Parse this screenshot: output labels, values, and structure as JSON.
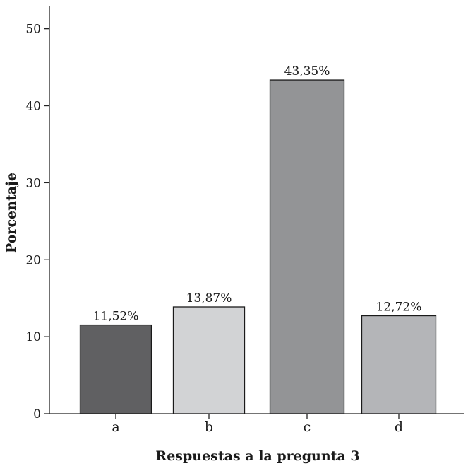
{
  "chart_data": {
    "type": "bar",
    "title": "",
    "xlabel": "Respuestas a la pregunta 3",
    "ylabel": "Porcentaje",
    "categories": [
      "a",
      "b",
      "c",
      "d"
    ],
    "values": [
      11.52,
      13.87,
      43.35,
      12.72
    ],
    "value_labels": [
      "11,52%",
      "13,87%",
      "43,35%",
      "12,72%"
    ],
    "bar_colors": [
      "#606062",
      "#d2d3d5",
      "#939496",
      "#b4b5b8"
    ],
    "ylim": [
      0,
      53
    ],
    "yticks": [
      0,
      10,
      20,
      30,
      40,
      50
    ],
    "grid": false,
    "legend": "none"
  }
}
